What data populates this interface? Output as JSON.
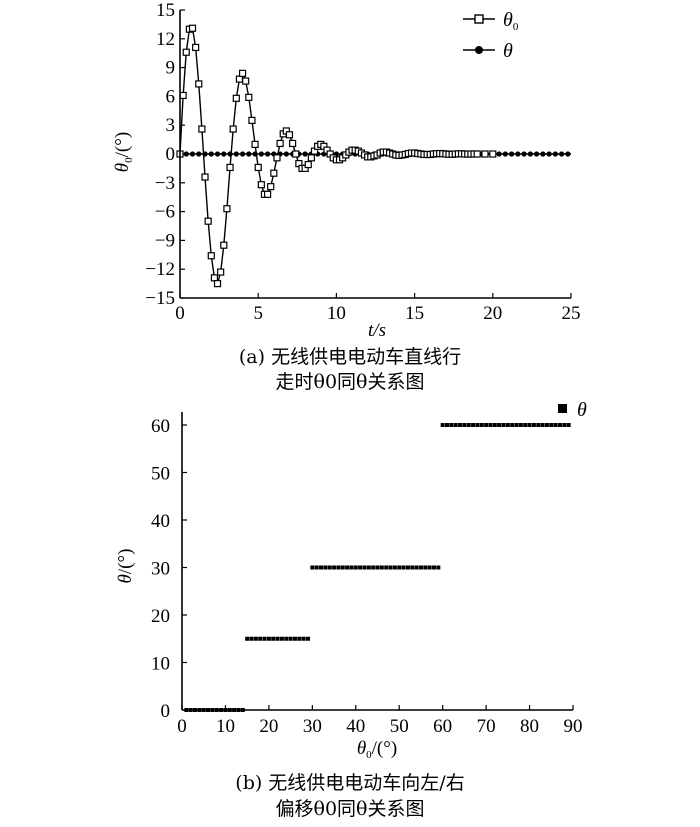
{
  "chart_data": [
    {
      "type": "line",
      "xlabel": "t/s",
      "ylabel": "θ0/(°)",
      "xlim": [
        0,
        25
      ],
      "ylim": [
        -15,
        15
      ],
      "xticks": [
        "0",
        "5",
        "10",
        "15",
        "20",
        "25"
      ],
      "yticks": [
        "15",
        "12",
        "9",
        "6",
        "3",
        "0",
        "-3",
        "-6",
        "-9",
        "-12",
        "-15"
      ],
      "legend_position": "top-right",
      "legend_labels": {
        "main": "θ",
        "sub": "0",
        "plain": "θ"
      },
      "caption_line1": "(a) 无线供电电动车直线行",
      "caption_line2": "走时θ0同θ关系图",
      "series": [
        {
          "name": "θ0",
          "marker": "open-square",
          "x": [
            0,
            0.2,
            0.4,
            0.6,
            0.8,
            1.0,
            1.2,
            1.4,
            1.6,
            1.8,
            2.0,
            2.2,
            2.4,
            2.6,
            2.8,
            3.0,
            3.2,
            3.4,
            3.6,
            3.8,
            4.0,
            4.2,
            4.4,
            4.6,
            4.8,
            5.0,
            5.2,
            5.4,
            5.6,
            5.8,
            6.0,
            6.2,
            6.4,
            6.6,
            6.8,
            7.0,
            7.2,
            7.4,
            7.6,
            7.8,
            8.0,
            8.2,
            8.4,
            8.6,
            8.8,
            9.0,
            9.2,
            9.4,
            9.6,
            9.8,
            10.0,
            10.2,
            10.4,
            10.6,
            10.8,
            11.0,
            11.2,
            11.4,
            11.6,
            11.8,
            12.0,
            12.2,
            12.4,
            12.6,
            12.8,
            13.0,
            13.2,
            13.4,
            13.6,
            13.8,
            14.0,
            14.2,
            14.4,
            14.6,
            14.8,
            15.0,
            15.2,
            15.4,
            15.6,
            15.8,
            16.0,
            16.2,
            16.4,
            16.6,
            16.8,
            17.0,
            17.2,
            17.4,
            17.6,
            17.8,
            18.0,
            18.2,
            18.4,
            18.6,
            18.8,
            19.0,
            19.5,
            20.0
          ],
          "y": [
            0,
            6.1,
            10.6,
            13.0,
            13.1,
            11.1,
            7.3,
            2.6,
            -2.4,
            -7.0,
            -10.6,
            -12.9,
            -13.5,
            -12.3,
            -9.5,
            -5.7,
            -1.4,
            2.6,
            5.8,
            7.8,
            8.4,
            7.6,
            5.9,
            3.5,
            1.0,
            -1.4,
            -3.2,
            -4.2,
            -4.2,
            -3.4,
            -2.0,
            -0.4,
            1.1,
            2.1,
            2.4,
            2.0,
            1.1,
            0,
            -1.0,
            -1.5,
            -1.5,
            -1.1,
            -0.4,
            0.3,
            0.8,
            1.0,
            0.8,
            0.4,
            0,
            -0.4,
            -0.6,
            -0.6,
            -0.4,
            -0.1,
            0.2,
            0.4,
            0.4,
            0.3,
            0.1,
            -0.1,
            -0.3,
            -0.3,
            -0.2,
            -0.1,
            0.1,
            0.2,
            0.2,
            0.1,
            0,
            -0.1,
            -0.15,
            -0.1,
            -0.05,
            0.05,
            0.1,
            0.1,
            0.05,
            0,
            -0.05,
            -0.05,
            -0.05,
            0,
            0.03,
            0.05,
            0.03,
            0,
            -0.03,
            -0.03,
            0,
            0.02,
            0.02,
            0,
            -0.01,
            0,
            0,
            0,
            0,
            0
          ]
        },
        {
          "name": "θ",
          "marker": "filled-circle",
          "x": [
            0,
            25
          ],
          "y": [
            0,
            0
          ]
        }
      ]
    },
    {
      "type": "scatter",
      "xlabel": "θ0/(°)",
      "ylabel": "θ/(°)",
      "xlim": [
        0,
        90
      ],
      "ylim": [
        0,
        60
      ],
      "xticks": [
        "0",
        "10",
        "20",
        "30",
        "40",
        "50",
        "60",
        "70",
        "80",
        "90"
      ],
      "yticks": [
        "60",
        "50",
        "40",
        "30",
        "20",
        "10",
        "0"
      ],
      "legend_position": "top-right",
      "legend_label": "θ",
      "caption_line1": "(b) 无线供电电动车向左/右",
      "caption_line2": "偏移θ0同θ关系图",
      "segments": [
        {
          "x_from": 1,
          "x_to": 14,
          "step": 1,
          "y": 0
        },
        {
          "x_from": 15,
          "x_to": 29,
          "step": 1,
          "y": 15
        },
        {
          "x_from": 30,
          "x_to": 59,
          "step": 1,
          "y": 30
        },
        {
          "x_from": 60,
          "x_to": 89,
          "step": 1,
          "y": 60
        }
      ]
    }
  ]
}
